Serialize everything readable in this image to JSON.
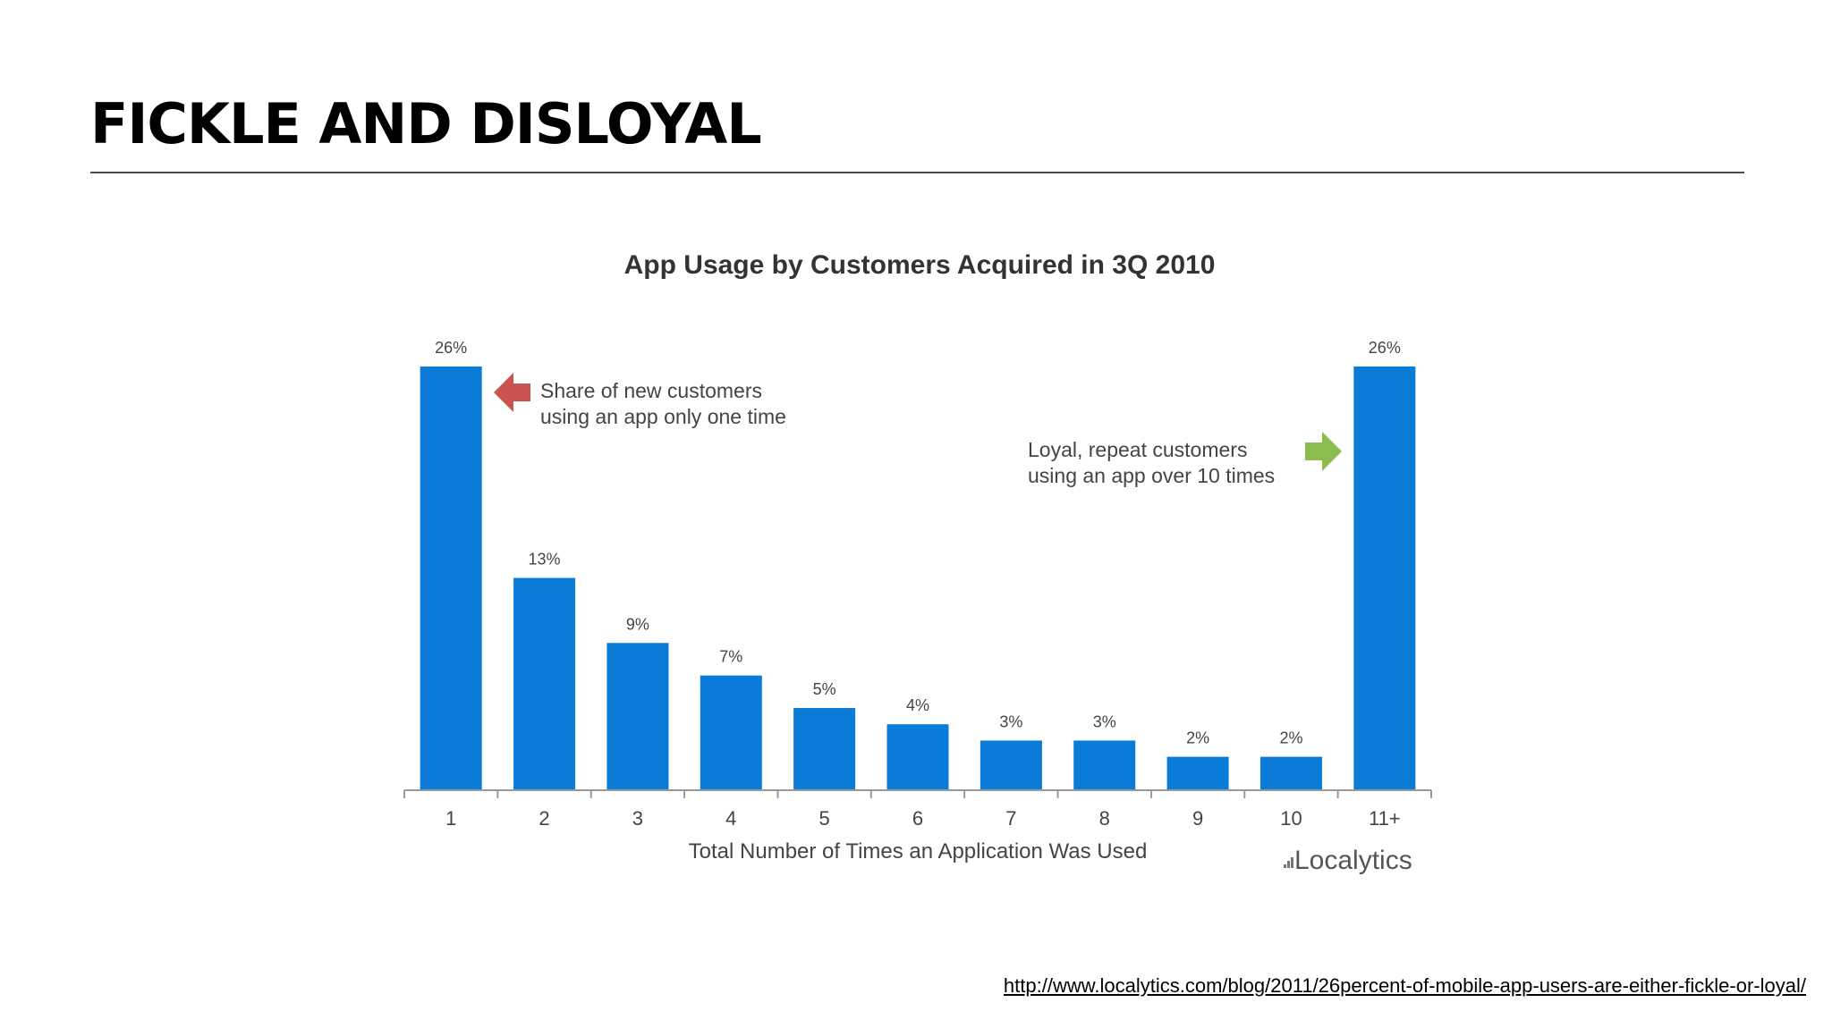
{
  "slide": {
    "title": "FICKLE AND DISLOYAL",
    "source_url": "http://www.localytics.com/blog/2011/26percent-of-mobile-app-users-are-either-fickle-or-loyal/"
  },
  "chart_data": {
    "type": "bar",
    "title": "App Usage by Customers Acquired in 3Q 2010",
    "xlabel": "Total Number of Times an Application Was Used",
    "ylabel": "",
    "ylim": [
      0,
      26
    ],
    "grid": false,
    "categories": [
      "1",
      "2",
      "3",
      "4",
      "5",
      "6",
      "7",
      "8",
      "9",
      "10",
      "11+"
    ],
    "values": [
      26,
      13,
      9,
      7,
      5,
      4,
      3,
      3,
      2,
      2,
      26
    ],
    "data_labels": [
      "26%",
      "13%",
      "9%",
      "7%",
      "5%",
      "4%",
      "3%",
      "3%",
      "2%",
      "2%",
      "26%"
    ],
    "bar_color": "#0a7bd6",
    "annotations": [
      {
        "target": "1",
        "lines": [
          "Share of new customers",
          "using an app only one time"
        ],
        "arrow_color": "#c9544f",
        "arrow_direction": "left"
      },
      {
        "target": "11+",
        "lines": [
          "Loyal, repeat customers",
          "using an app over 10 times"
        ],
        "arrow_color": "#8bbd4e",
        "arrow_direction": "right"
      }
    ],
    "branding": "Localytics"
  }
}
